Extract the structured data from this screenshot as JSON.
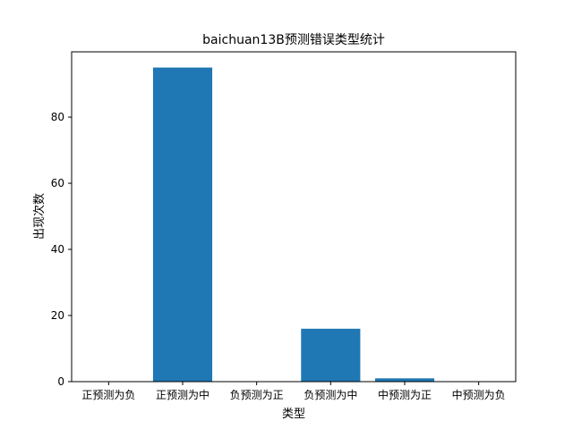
{
  "chart_data": {
    "type": "bar",
    "title": "baichuan13B预测错误类型统计",
    "xlabel": "类型",
    "ylabel": "出现次数",
    "categories": [
      "正预测为负",
      "正预测为中",
      "负预测为正",
      "负预测为中",
      "中预测为正",
      "中预测为负"
    ],
    "values": [
      0,
      95,
      0,
      16,
      1,
      0
    ],
    "ylim": [
      0,
      99.75
    ],
    "yticks": [
      0,
      20,
      40,
      60,
      80
    ],
    "bar_color": "#1f77b4",
    "grid": false,
    "legend": "none"
  }
}
